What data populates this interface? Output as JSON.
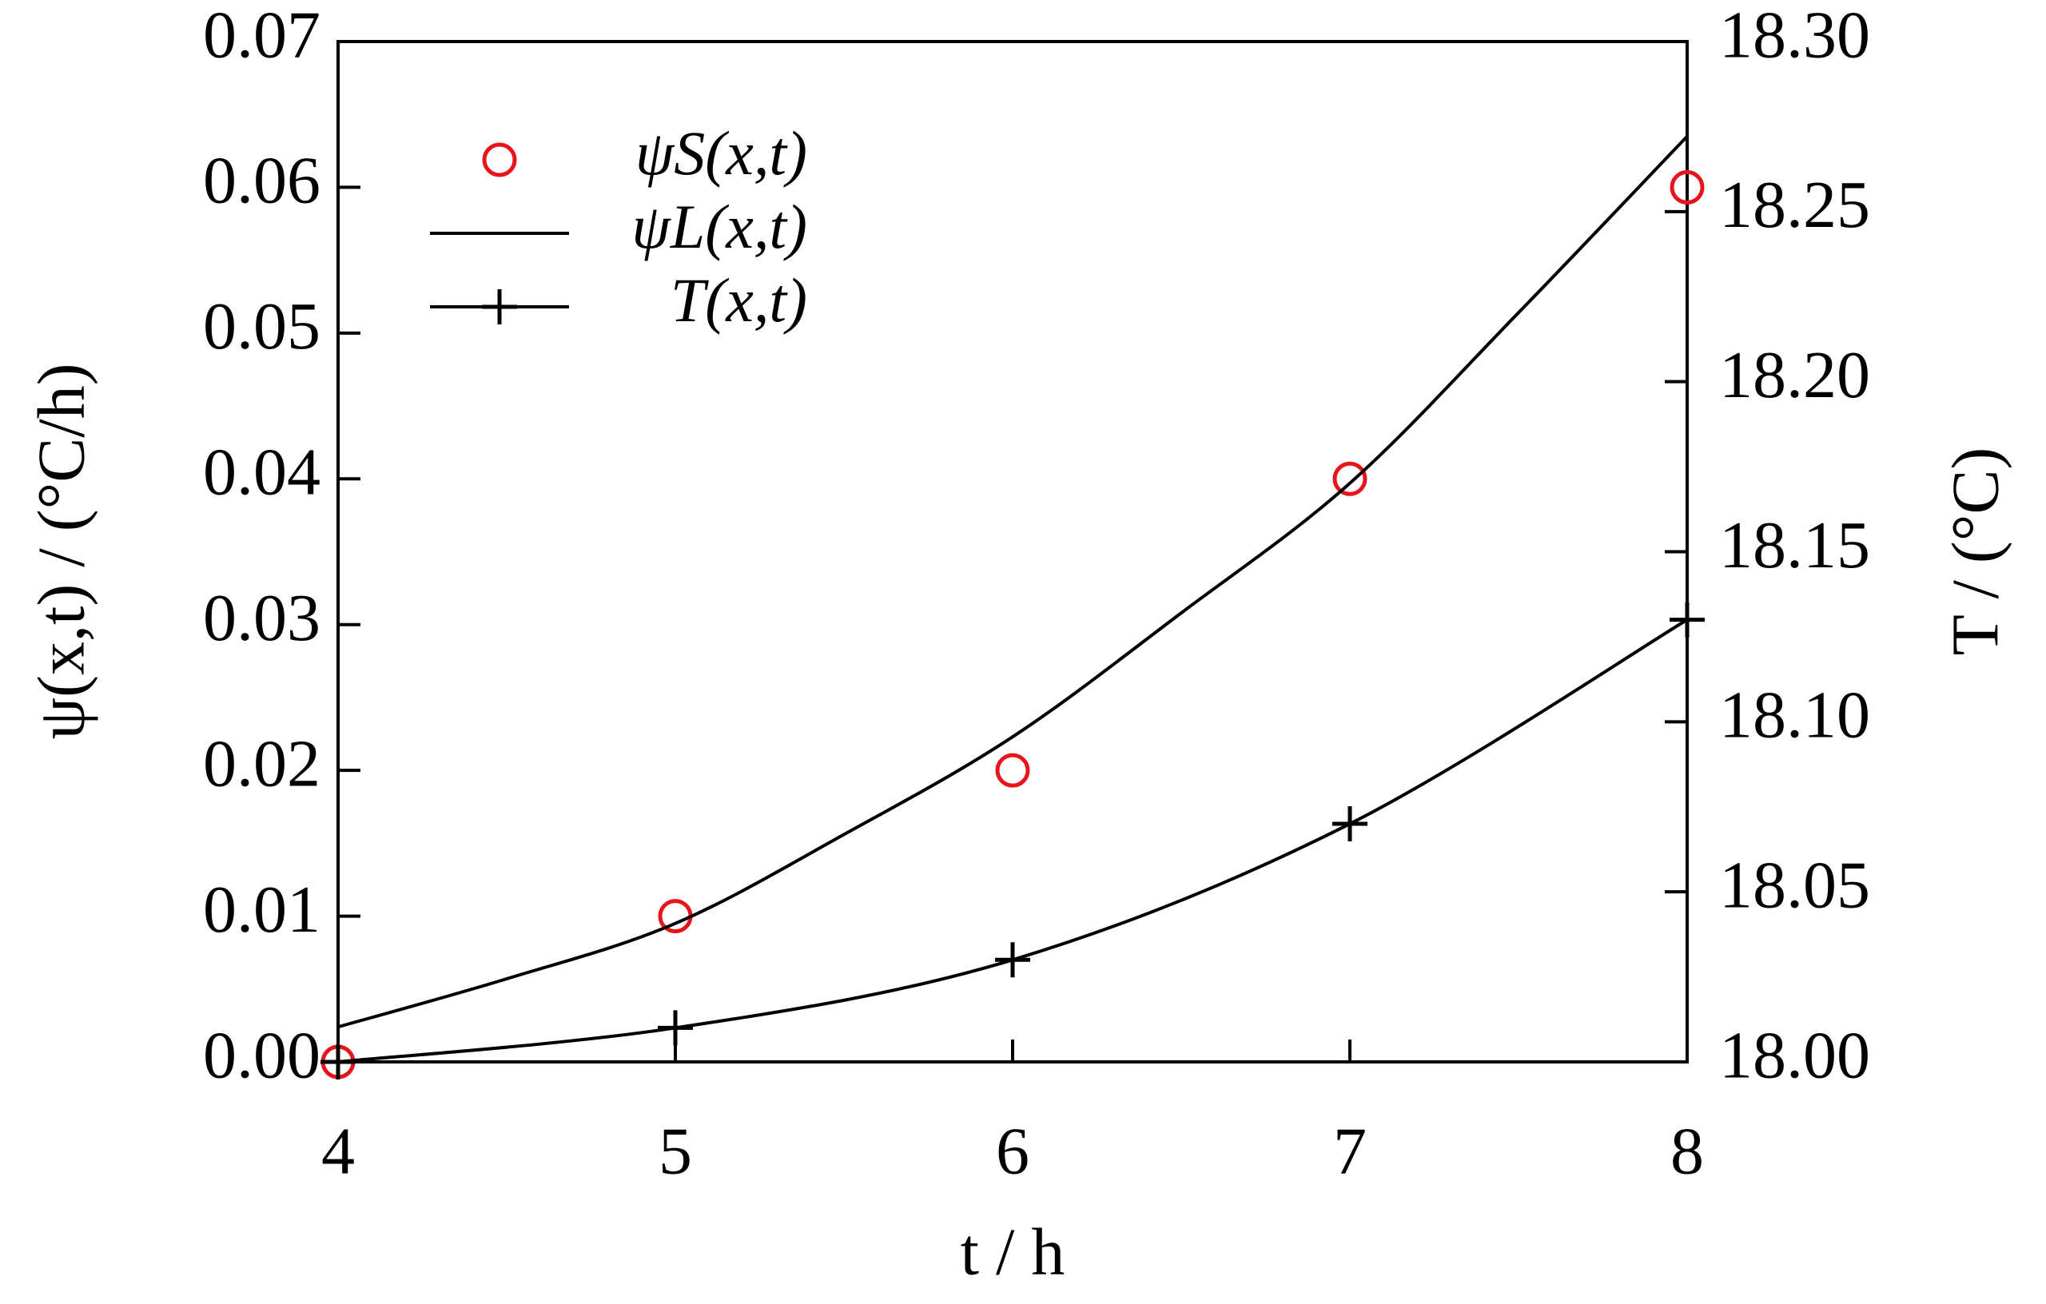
{
  "chart_data": {
    "type": "line",
    "x_label": "t / h",
    "y_label": "ψ(x,t) / (°C/h)",
    "y2_label": "T / (°C)",
    "xlim": [
      4,
      8
    ],
    "xticks": [
      4,
      5,
      6,
      7,
      8
    ],
    "ylim": [
      0,
      0.07
    ],
    "yticks": [
      {
        "value": 0,
        "label": "0.00"
      },
      0.01,
      0.02,
      0.03,
      0.04,
      0.05,
      0.06,
      0.07
    ],
    "y2lim": [
      18.0,
      18.3
    ],
    "y2ticks": [
      {
        "value": 18.0,
        "label": "18.00"
      },
      18.05,
      {
        "value": 18.1,
        "label": "18.10"
      },
      18.15,
      {
        "value": 18.2,
        "label": "18.20"
      },
      18.25,
      {
        "value": 18.3,
        "label": "18.30"
      }
    ],
    "legend": "upper left",
    "series": [
      {
        "name": "ψS(x,t)",
        "color": "#e8141c",
        "style": "scatter",
        "x": [
          4,
          5,
          6,
          7,
          8
        ],
        "values": [
          0,
          0.01,
          0.02,
          0.04,
          0.06
        ]
      },
      {
        "name": "ψL(x,t)",
        "color": "#000000",
        "style": "line",
        "x": [
          4,
          4.5,
          5,
          5.5,
          6,
          6.5,
          7,
          7.5,
          8
        ],
        "values": [
          0.0024,
          0.0057,
          0.0095,
          0.0156,
          0.0223,
          0.0308,
          0.0397,
          0.0514,
          0.0635
        ]
      },
      {
        "name": "T(x,t)",
        "color": "#000000",
        "style": "line-plus",
        "axis": "y2",
        "x": [
          4,
          5,
          6,
          7,
          8
        ],
        "values": [
          18.0,
          18.01,
          18.03,
          18.07,
          18.13
        ]
      }
    ]
  }
}
